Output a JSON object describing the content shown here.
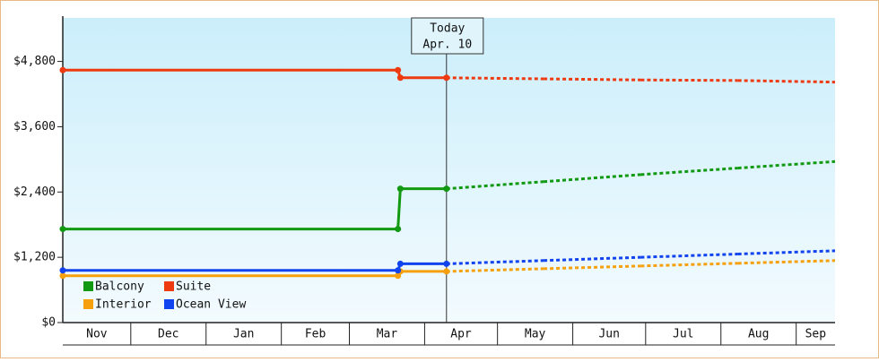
{
  "chart_data": {
    "type": "line",
    "x": [
      2,
      140,
      141,
      160,
      200,
      240,
      280,
      320
    ],
    "series": [
      {
        "name": "Balcony",
        "color": "#129912",
        "values": [
          1720,
          1720,
          2460,
          2460,
          2590,
          2720,
          2840,
          2960
        ]
      },
      {
        "name": "Suite",
        "color": "#ee3a11",
        "values": [
          4640,
          4640,
          4500,
          4500,
          4480,
          4460,
          4450,
          4420
        ]
      },
      {
        "name": "Interior",
        "color": "#f5a00c",
        "values": [
          860,
          860,
          940,
          940,
          990,
          1040,
          1090,
          1140
        ]
      },
      {
        "name": "Ocean View",
        "color": "#1144ee",
        "values": [
          960,
          960,
          1080,
          1080,
          1140,
          1200,
          1260,
          1320
        ]
      }
    ],
    "xlim": [
      2,
      320
    ],
    "xticks": [
      {
        "value": 2,
        "label": "Nov"
      },
      {
        "value": 30,
        "label": "Dec"
      },
      {
        "value": 61,
        "label": "Jan"
      },
      {
        "value": 92,
        "label": "Feb"
      },
      {
        "value": 120,
        "label": "Mar"
      },
      {
        "value": 151,
        "label": "Apr"
      },
      {
        "value": 181,
        "label": "May"
      },
      {
        "value": 212,
        "label": "Jun"
      },
      {
        "value": 242,
        "label": "Jul"
      },
      {
        "value": 273,
        "label": "Aug"
      },
      {
        "value": 304,
        "label": "Sep"
      }
    ],
    "ylim": [
      0,
      5600
    ],
    "yticks": [
      {
        "value": 0,
        "label": "$0"
      },
      {
        "value": 1200,
        "label": "$1,200"
      },
      {
        "value": 2400,
        "label": "$2,400"
      },
      {
        "value": 3600,
        "label": "$3,600"
      },
      {
        "value": 4800,
        "label": "$4,800"
      }
    ],
    "annotation": {
      "label": "Today",
      "date": "Apr. 10",
      "x": 160
    },
    "grid": false
  }
}
